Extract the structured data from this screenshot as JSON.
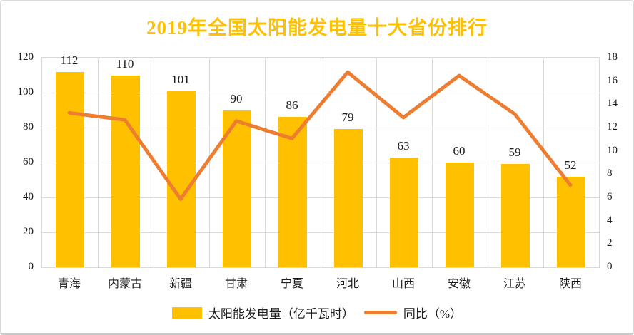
{
  "title": "2019年全国太阳能发电量十大省份排行",
  "colors": {
    "title": "#FFC000",
    "bar": "#FFC000",
    "line": "#ED7D31",
    "grid": "#D9D9D9",
    "axis_text": "#1A1A1A"
  },
  "legend": {
    "bar_label": "太阳能发电量（亿千瓦时）",
    "line_label": "同比（%）"
  },
  "chart_data": {
    "type": "bar+line combo",
    "title": "2019年全国太阳能发电量十大省份排行",
    "categories": [
      "青海",
      "内蒙古",
      "新疆",
      "甘肃",
      "宁夏",
      "河北",
      "山西",
      "安徽",
      "江苏",
      "陕西"
    ],
    "series": [
      {
        "name": "太阳能发电量（亿千瓦时）",
        "type": "bar",
        "axis": "left",
        "values": [
          112,
          110,
          101,
          90,
          86,
          79,
          63,
          60,
          59,
          52
        ],
        "data_labels_shown": true
      },
      {
        "name": "同比（%）",
        "type": "line",
        "axis": "right",
        "values": [
          13.2,
          12.6,
          5.8,
          12.5,
          11.0,
          16.7,
          12.8,
          16.4,
          13.1,
          7.0
        ],
        "data_labels_shown": false
      }
    ],
    "left_axis": {
      "min": 0,
      "max": 120,
      "step": 20,
      "ticks": [
        0,
        20,
        40,
        60,
        80,
        100,
        120
      ]
    },
    "right_axis": {
      "min": 0,
      "max": 18,
      "step": 2,
      "ticks": [
        0,
        2,
        4,
        6,
        8,
        10,
        12,
        14,
        16,
        18
      ]
    },
    "grid": "horizontal and vertical major gridlines",
    "legend_position": "bottom"
  }
}
